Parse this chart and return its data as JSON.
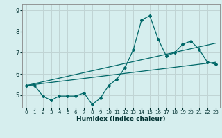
{
  "xlabel": "Humidex (Indice chaleur)",
  "bg_color": "#d6eeee",
  "grid_color": "#c0d4d4",
  "line_color": "#006868",
  "xlim": [
    -0.5,
    23.5
  ],
  "ylim": [
    4.4,
    9.3
  ],
  "xticks": [
    0,
    1,
    2,
    3,
    4,
    5,
    6,
    7,
    8,
    9,
    10,
    11,
    12,
    13,
    14,
    15,
    16,
    17,
    18,
    19,
    20,
    21,
    22,
    23
  ],
  "yticks": [
    5,
    6,
    7,
    8,
    9
  ],
  "line1_x": [
    0,
    1,
    2,
    3,
    4,
    5,
    6,
    7,
    8,
    9,
    10,
    11,
    12,
    13,
    14,
    15,
    16,
    17,
    18,
    19,
    20,
    21,
    22,
    23
  ],
  "line1_y": [
    5.45,
    5.45,
    4.95,
    4.75,
    4.95,
    4.95,
    4.95,
    5.1,
    4.55,
    4.85,
    5.45,
    5.75,
    6.3,
    7.15,
    8.55,
    8.75,
    7.65,
    6.85,
    7.0,
    7.4,
    7.55,
    7.15,
    6.55,
    6.45
  ],
  "line2_x": [
    0,
    23
  ],
  "line2_y": [
    5.45,
    6.55
  ],
  "line3_x": [
    0,
    23
  ],
  "line3_y": [
    5.45,
    7.45
  ]
}
